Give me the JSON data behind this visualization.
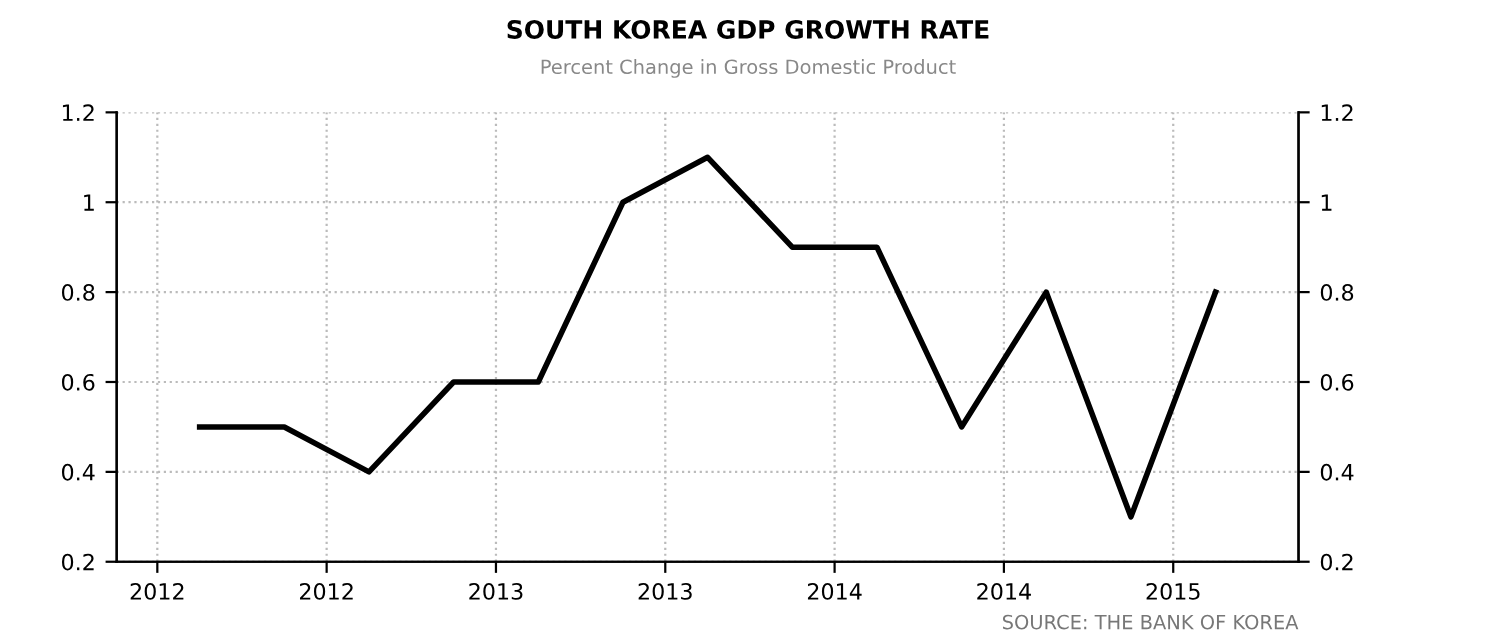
{
  "chart_data": {
    "type": "line",
    "title": "SOUTH KOREA GDP GROWTH RATE",
    "subtitle": "Percent Change in Gross Domestic Product",
    "x": [
      2012.125,
      2012.375,
      2012.625,
      2012.875,
      2013.125,
      2013.375,
      2013.625,
      2013.875,
      2014.125,
      2014.375,
      2014.625,
      2014.875,
      2015.125
    ],
    "series": [
      {
        "color": "#000000",
        "values": [
          0.5,
          0.5,
          0.4,
          0.6,
          0.6,
          1.0,
          1.1,
          0.9,
          0.9,
          0.5,
          0.8,
          0.3,
          0.8
        ]
      }
    ],
    "xlim": [
      2011.88,
      2015.37
    ],
    "xticks": [
      2012,
      {
        "value": 2012.5,
        "label": "2012"
      },
      2013,
      {
        "value": 2013.5,
        "label": "2013"
      },
      2014,
      {
        "value": 2014.5,
        "label": "2014"
      },
      2015
    ],
    "ylim": [
      0.2,
      1.2
    ],
    "yticks": [
      0.2,
      0.4,
      0.6,
      0.8,
      1,
      1.2
    ],
    "y2lim": [
      0.2,
      1.2
    ],
    "y2ticks": [
      0.2,
      0.4,
      0.6,
      0.8,
      1,
      1.2
    ],
    "grid": true,
    "line_style": "solid",
    "marker": "none",
    "annotations": [
      "SOURCE: THE BANK OF KOREA"
    ]
  }
}
